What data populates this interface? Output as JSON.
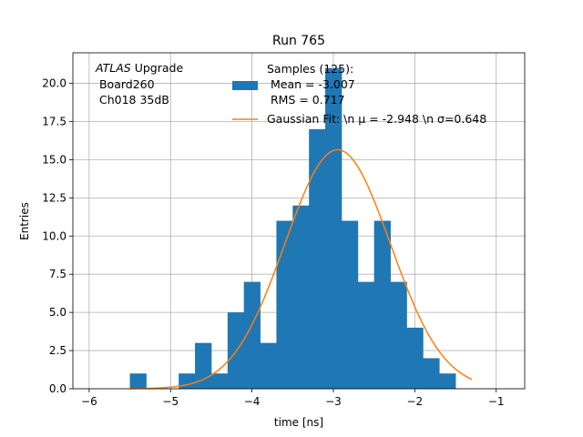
{
  "chart_data": {
    "type": "bar",
    "title": "Run 765",
    "xlabel": "time [ns]",
    "ylabel": "Entries",
    "xlim": [
      -6.2,
      -0.65
    ],
    "ylim": [
      0,
      22
    ],
    "grid": true,
    "x_ticks": [
      -6,
      -5,
      -4,
      -3,
      -2,
      -1
    ],
    "x_tick_labels": [
      "−6",
      "−5",
      "−4",
      "−3",
      "−2",
      "−1"
    ],
    "y_ticks": [
      0,
      2.5,
      5,
      7.5,
      10,
      12.5,
      15,
      17.5,
      20
    ],
    "y_tick_labels": [
      "0.0",
      "2.5",
      "5.0",
      "7.5",
      "10.0",
      "12.5",
      "15.0",
      "17.5",
      "20.0"
    ],
    "bin_width": 0.2,
    "bin_edges_start": -5.5,
    "bin_counts": [
      1,
      0,
      0,
      1,
      3,
      1,
      5,
      7,
      3,
      11,
      12,
      17,
      21,
      11,
      7,
      11,
      7,
      4,
      2,
      1
    ],
    "bar_color": "#1f77b4",
    "fit_curve": {
      "amplitude": 15.65,
      "mean": -2.948,
      "sigma": 0.648,
      "x_range": [
        -5.5,
        -1.3
      ],
      "color": "#ff7f0e"
    },
    "annotation": {
      "italic": "ATLAS",
      "rest": " Upgrade",
      "line2": " Board260",
      "line3": " Ch018 35dB"
    },
    "legend": {
      "placement": "top-right",
      "samples_line1": "Samples (125):",
      "samples_line2": " Mean = -3.007",
      "samples_line3": " RMS = 0.717",
      "fit_label": "Gaussian Fit: \\n μ = -2.948 \\n σ=0.648"
    }
  }
}
